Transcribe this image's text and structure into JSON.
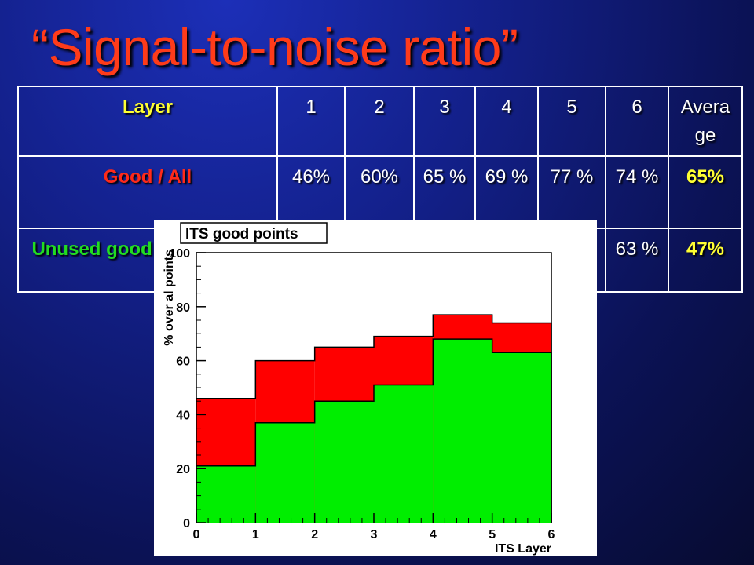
{
  "slide": {
    "title": "“Signal-to-noise ratio”"
  },
  "table": {
    "header_label": "Layer",
    "columns": [
      "1",
      "2",
      "3",
      "4",
      "5",
      "6",
      "Avera ge"
    ],
    "rows": [
      {
        "label": "Good / All",
        "values": [
          "46%",
          "60%",
          "65 %",
          "69 %",
          "77 %",
          "74 %",
          "65%"
        ]
      },
      {
        "label": "Unused good / All unused",
        "values": [
          "",
          "",
          "",
          "",
          "",
          "63 %",
          "47%"
        ]
      }
    ]
  },
  "chart_data": {
    "type": "bar",
    "title": "ITS good points",
    "xlabel": "ITS Layer",
    "ylabel": "% over al points",
    "xlim": [
      0,
      6
    ],
    "ylim": [
      0,
      100
    ],
    "x_ticks": [
      "0",
      "1",
      "2",
      "3",
      "4",
      "5",
      "6"
    ],
    "y_ticks": [
      "0",
      "20",
      "40",
      "60",
      "80",
      "100"
    ],
    "bins": [
      [
        0,
        1
      ],
      [
        1,
        2
      ],
      [
        2,
        3
      ],
      [
        3,
        4
      ],
      [
        4,
        5
      ],
      [
        5,
        6
      ]
    ],
    "series": [
      {
        "values": [
          46,
          60,
          65,
          69,
          77,
          74
        ],
        "color": "#ff0000"
      },
      {
        "values": [
          21,
          37,
          45,
          51,
          68,
          63
        ],
        "color": "#00ee00"
      }
    ]
  }
}
